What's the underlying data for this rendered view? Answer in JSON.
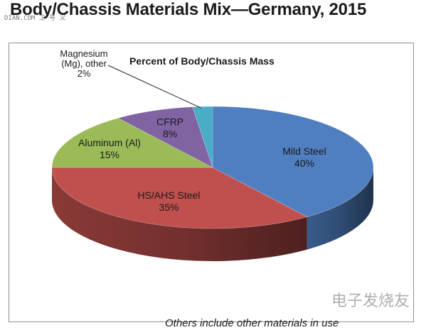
{
  "title": "Body/Chassis Materials Mix—Germany, 2015",
  "watermark_top": "DIAN.COM 工 号 义",
  "watermark_logo": "电子发烧友",
  "footnote": "Others include other materials in use",
  "chart_data": {
    "type": "pie",
    "subtitle": "Percent of Body/Chassis Mass",
    "three_d": true,
    "legend": "none",
    "slices": [
      {
        "label": "Mild Steel",
        "value": 40,
        "value_label": "40%",
        "color": "#4f7fc0"
      },
      {
        "label": "HS/AHS Steel",
        "value": 35,
        "value_label": "35%",
        "color": "#c0504d"
      },
      {
        "label": "Aluminum (Al)",
        "value": 15,
        "value_label": "15%",
        "color": "#9bbb59"
      },
      {
        "label": "CFRP",
        "value": 8,
        "value_label": "8%",
        "color": "#8064a2"
      },
      {
        "label": "Magnesium (Mg), other",
        "label_lines": [
          "Magnesium",
          "(Mg), other"
        ],
        "value": 2,
        "value_label": "2%",
        "color": "#4bacc6"
      }
    ]
  }
}
